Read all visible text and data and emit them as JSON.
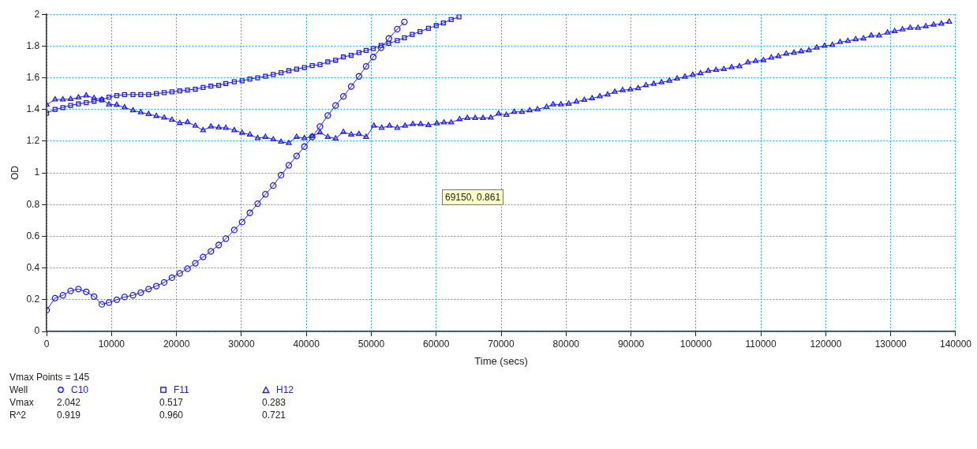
{
  "chart_data": {
    "type": "line",
    "xlabel": "Time (secs)",
    "ylabel": "OD",
    "xlim": [
      0,
      140000
    ],
    "xticks": [
      0,
      10000,
      20000,
      30000,
      40000,
      50000,
      60000,
      70000,
      80000,
      90000,
      100000,
      110000,
      120000,
      130000,
      140000
    ],
    "ylim": [
      0,
      2
    ],
    "yticks": [
      0,
      0.2,
      0.4,
      0.6,
      0.8,
      1,
      1.2,
      1.4,
      1.6,
      1.8,
      2
    ],
    "grid": true,
    "legend": "bottom",
    "line_style": "solid",
    "annotations": [
      "69150, 0.861",
      "Vmax Points = 145",
      "Well",
      "Vmax",
      "2.042",
      "0.517",
      "0.283",
      "R^2",
      "0.919",
      "0.960",
      "0.721"
    ],
    "series": [
      {
        "name": "C10",
        "color": "#1a1aff",
        "marker": "circle",
        "x": [
          0,
          1300,
          2500,
          3700,
          4900,
          6100,
          7300,
          8500,
          9600,
          10800,
          12000,
          13300,
          14500,
          15700,
          16900,
          18100,
          19300,
          20500,
          21700,
          22900,
          24100,
          25300,
          26500,
          27600,
          28900,
          30100,
          31300,
          32500,
          33700,
          34900,
          36100,
          37300,
          38500,
          39700,
          40900,
          42100,
          43300,
          44500,
          45700,
          46900,
          48100,
          49200,
          50300,
          51500,
          52700,
          54000,
          55100
        ],
        "values": [
          0.135,
          0.21,
          0.228,
          0.256,
          0.267,
          0.25,
          0.22,
          0.171,
          0.182,
          0.2,
          0.217,
          0.228,
          0.245,
          0.267,
          0.286,
          0.309,
          0.339,
          0.366,
          0.396,
          0.43,
          0.47,
          0.505,
          0.545,
          0.585,
          0.64,
          0.69,
          0.748,
          0.806,
          0.865,
          0.92,
          0.986,
          1.048,
          1.107,
          1.166,
          1.227,
          1.292,
          1.362,
          1.425,
          1.483,
          1.545,
          1.609,
          1.672,
          1.731,
          1.789,
          1.848,
          1.907,
          1.952
        ]
      },
      {
        "name": "F11",
        "color": "#1a1aff",
        "marker": "square",
        "x": [
          0,
          1300,
          2500,
          3700,
          4900,
          6100,
          7300,
          8500,
          9600,
          10800,
          12000,
          13300,
          14500,
          15700,
          16900,
          18100,
          19300,
          20500,
          21700,
          22900,
          24100,
          25300,
          26500,
          27600,
          28900,
          30100,
          31300,
          32500,
          33700,
          34900,
          36100,
          37300,
          38500,
          39700,
          40900,
          42100,
          43300,
          44500,
          45700,
          46900,
          48100,
          49200,
          50300,
          51500,
          52700,
          54000,
          55100,
          56300,
          57500,
          58800,
          60000,
          61100,
          62300,
          63500
        ],
        "values": [
          1.377,
          1.401,
          1.412,
          1.426,
          1.435,
          1.443,
          1.452,
          1.46,
          1.478,
          1.488,
          1.494,
          1.494,
          1.494,
          1.494,
          1.5,
          1.506,
          1.511,
          1.517,
          1.523,
          1.528,
          1.539,
          1.547,
          1.553,
          1.564,
          1.575,
          1.581,
          1.592,
          1.6,
          1.61,
          1.621,
          1.632,
          1.644,
          1.655,
          1.665,
          1.677,
          1.683,
          1.7,
          1.711,
          1.731,
          1.742,
          1.759,
          1.773,
          1.784,
          1.804,
          1.817,
          1.835,
          1.852,
          1.874,
          1.891,
          1.912,
          1.929,
          1.946,
          1.967,
          1.984
        ]
      },
      {
        "name": "H12",
        "color": "#1a1aff",
        "marker": "triangle",
        "x": [
          0,
          1300,
          2500,
          3700,
          4900,
          6100,
          7300,
          8500,
          9600,
          10800,
          12000,
          13300,
          14500,
          15700,
          16900,
          18100,
          19300,
          20500,
          21700,
          22900,
          24100,
          25300,
          26500,
          27600,
          28900,
          30100,
          31300,
          32500,
          33700,
          34900,
          36100,
          37300,
          38500,
          39700,
          40900,
          42100,
          43300,
          44500,
          45700,
          46900,
          48100,
          49200,
          50400,
          51600,
          52800,
          54000,
          55200,
          56400,
          57600,
          58800,
          60100,
          61200,
          62300,
          63600,
          64800,
          66000,
          67200,
          68400,
          69600,
          70800,
          72000,
          73200,
          74400,
          75600,
          77000,
          78000,
          79200,
          80400,
          81600,
          82800,
          84000,
          85200,
          86400,
          87500,
          88700,
          89900,
          91100,
          92300,
          93500,
          94700,
          95900,
          97100,
          98300,
          99500,
          100700,
          101900,
          103100,
          104300,
          105500,
          106700,
          108000,
          109200,
          110400,
          111600,
          112700,
          113900,
          115100,
          116200,
          117400,
          118600,
          119800,
          121000,
          122200,
          123400,
          124600,
          125800,
          127000,
          128200,
          129500,
          130600,
          131800,
          133000,
          134200,
          135400,
          136600,
          137800,
          139000
        ],
        "values": [
          1.43,
          1.463,
          1.463,
          1.466,
          1.475,
          1.488,
          1.472,
          1.463,
          1.432,
          1.429,
          1.413,
          1.394,
          1.382,
          1.371,
          1.359,
          1.348,
          1.335,
          1.314,
          1.32,
          1.297,
          1.269,
          1.292,
          1.286,
          1.284,
          1.269,
          1.253,
          1.242,
          1.219,
          1.227,
          1.211,
          1.196,
          1.188,
          1.227,
          1.219,
          1.231,
          1.255,
          1.227,
          1.217,
          1.258,
          1.242,
          1.245,
          1.227,
          1.297,
          1.284,
          1.297,
          1.284,
          1.297,
          1.307,
          1.307,
          1.301,
          1.312,
          1.318,
          1.318,
          1.339,
          1.346,
          1.346,
          1.346,
          1.348,
          1.373,
          1.366,
          1.385,
          1.385,
          1.394,
          1.401,
          1.416,
          1.432,
          1.432,
          1.436,
          1.449,
          1.46,
          1.47,
          1.483,
          1.494,
          1.511,
          1.522,
          1.526,
          1.534,
          1.553,
          1.561,
          1.571,
          1.581,
          1.595,
          1.606,
          1.618,
          1.629,
          1.643,
          1.649,
          1.655,
          1.666,
          1.672,
          1.697,
          1.705,
          1.711,
          1.727,
          1.736,
          1.752,
          1.758,
          1.767,
          1.773,
          1.79,
          1.801,
          1.806,
          1.825,
          1.832,
          1.843,
          1.848,
          1.866,
          1.866,
          1.885,
          1.894,
          1.905,
          1.915,
          1.915,
          1.925,
          1.935,
          1.941,
          1.953
        ]
      }
    ]
  }
}
